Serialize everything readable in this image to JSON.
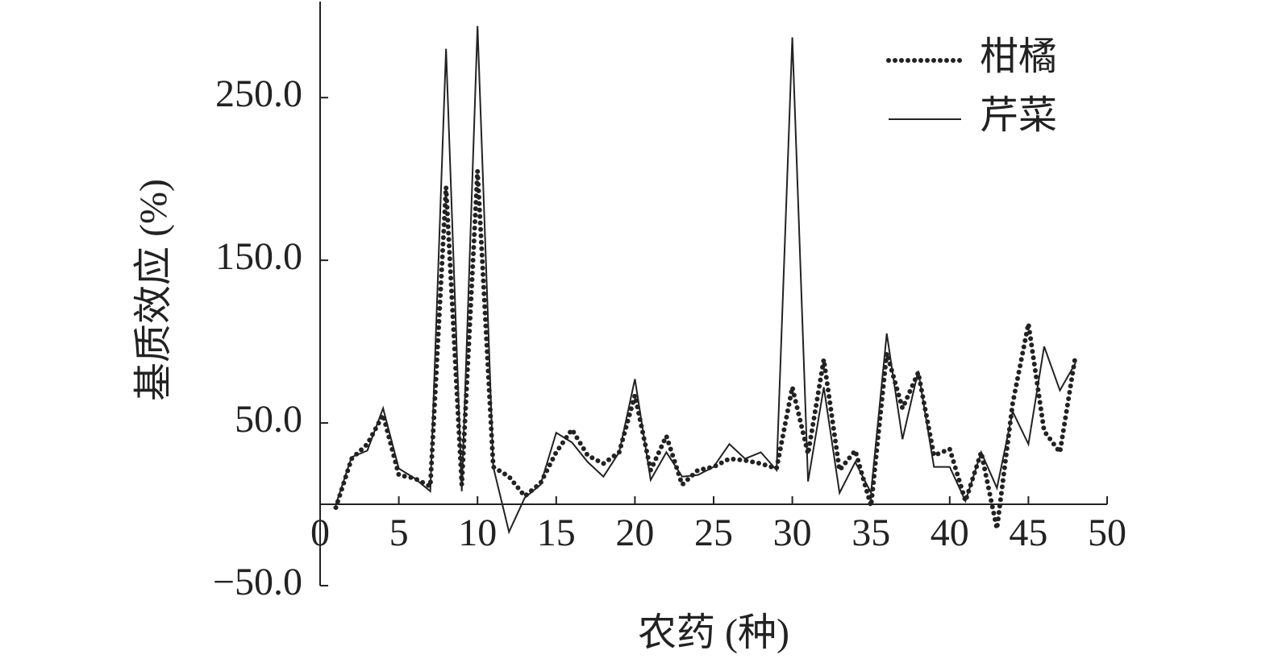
{
  "chart_data": {
    "type": "line",
    "xlabel": "农药 (种)",
    "ylabel": "基质效应 (%)",
    "x": [
      1,
      2,
      3,
      4,
      5,
      6,
      7,
      8,
      9,
      10,
      11,
      12,
      13,
      14,
      15,
      16,
      17,
      18,
      19,
      20,
      21,
      22,
      23,
      24,
      25,
      26,
      27,
      28,
      29,
      30,
      31,
      32,
      33,
      34,
      35,
      36,
      37,
      38,
      39,
      40,
      41,
      42,
      43,
      44,
      45,
      46,
      47,
      48
    ],
    "series": [
      {
        "name": "柑橘",
        "color": "#222222",
        "linestyle": "dotted",
        "values": [
          -2,
          28,
          37,
          55,
          18,
          16,
          11,
          195,
          12,
          205,
          23,
          17,
          5,
          13,
          32,
          46,
          30,
          25,
          32,
          67,
          21,
          42,
          12,
          21,
          23,
          28,
          27,
          25,
          22,
          72,
          31,
          89,
          21,
          33,
          -1,
          93,
          59,
          81,
          30,
          34,
          2,
          32,
          -15,
          62,
          111,
          45,
          32,
          92
        ]
      },
      {
        "name": "芹菜",
        "color": "#222222",
        "linestyle": "solid",
        "values": [
          0,
          29,
          33,
          59,
          22,
          16,
          8,
          280,
          8,
          294,
          23,
          -17,
          4,
          12,
          44,
          38,
          26,
          17,
          32,
          77,
          15,
          32,
          17,
          18,
          23,
          37,
          28,
          32,
          21,
          287,
          14,
          72,
          7,
          26,
          7,
          105,
          40,
          82,
          23,
          23,
          2,
          32,
          10,
          57,
          37,
          97,
          70,
          87
        ]
      }
    ],
    "xlim": [
      0,
      50
    ],
    "xticks": [
      0,
      5,
      10,
      15,
      20,
      25,
      30,
      35,
      40,
      45,
      50
    ],
    "ylim": [
      -50,
      309
    ],
    "yticks": [
      {
        "value": -50,
        "label": "−50.0"
      },
      {
        "value": 50,
        "label": "50.0"
      },
      {
        "value": 150,
        "label": "150.0"
      },
      {
        "value": 250,
        "label": "250.0"
      }
    ],
    "legend": "upper right"
  }
}
